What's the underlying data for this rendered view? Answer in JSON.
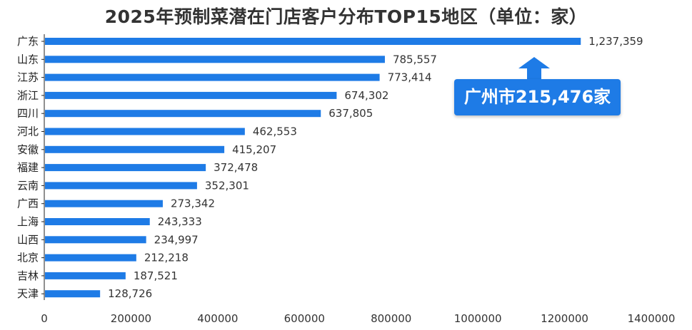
{
  "title": "2025年预制菜潜在门店客户分布TOP15地区（单位：家）",
  "callout": {
    "text": "广州市215,476家"
  },
  "colors": {
    "bar": "#1e7be6",
    "callout_bg": "#1e7be6",
    "axis": "#222222"
  },
  "chart_data": {
    "type": "bar",
    "orientation": "horizontal",
    "title": "2025年预制菜潜在门店客户分布TOP15地区（单位：家）",
    "categories": [
      "广东",
      "山东",
      "江苏",
      "浙江",
      "四川",
      "河北",
      "安徽",
      "福建",
      "云南",
      "广西",
      "上海",
      "山西",
      "北京",
      "吉林",
      "天津"
    ],
    "values": [
      1237359,
      785557,
      773414,
      674302,
      637805,
      462553,
      415207,
      372478,
      352301,
      273342,
      243333,
      234997,
      212218,
      187521,
      128726
    ],
    "value_labels": [
      "1,237,359",
      "785,557",
      "773,414",
      "674,302",
      "637,805",
      "462,553",
      "415,207",
      "372,478",
      "352,301",
      "273,342",
      "243,333",
      "234,997",
      "212,218",
      "187,521",
      "128,726"
    ],
    "xlim": [
      0,
      1400000
    ],
    "xticks": [
      0,
      200000,
      400000,
      600000,
      800000,
      1000000,
      1200000,
      1400000
    ],
    "xtick_labels": [
      "0",
      "200000",
      "400000",
      "600000",
      "800000",
      "1000000",
      "1200000",
      "1400000"
    ],
    "xlabel": "",
    "ylabel": "",
    "grid": false,
    "legend": "none"
  }
}
